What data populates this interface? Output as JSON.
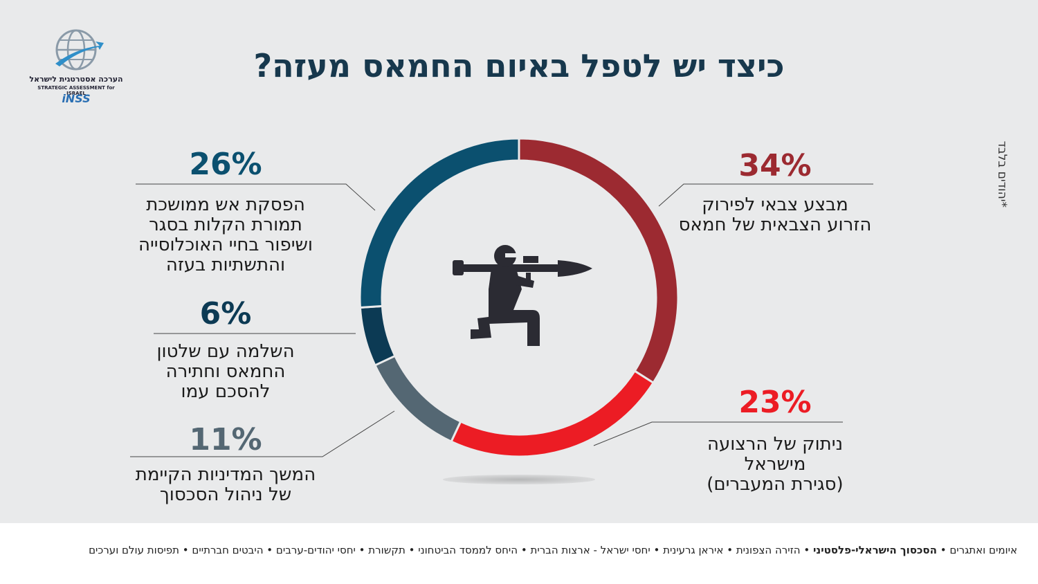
{
  "title": "כיצד יש לטפל באיום החמאס מעזה?",
  "side_note": "*יהודים בלבד",
  "logo": {
    "hebrew": "הערכה אסטרטגית לישראל",
    "english": "STRATEGIC ASSESSMENT for ISRAEL",
    "brand": "iNSS"
  },
  "chart_data": {
    "type": "pie",
    "title": "כיצד יש לטפל באיום החמאס מעזה?",
    "slices": [
      {
        "percent_label": "34%",
        "value": 34,
        "label_lines": [
          "מבצע צבאי לפירוק",
          "הזרוע הצבאית של חמאס"
        ],
        "color": "#9c2a31"
      },
      {
        "percent_label": "23%",
        "value": 23,
        "label_lines": [
          "ניתוק של הרצועה",
          "מישראל",
          "(סגירת המעברים)"
        ],
        "color": "#ec1c24"
      },
      {
        "percent_label": "11%",
        "value": 11,
        "label_lines": [
          "המשך המדיניות הקיימת",
          "של ניהול הסכסוך"
        ],
        "color": "#546773"
      },
      {
        "percent_label": "6%",
        "value": 6,
        "label_lines": [
          "השלמה עם שלטון",
          "החמאס וחתירה",
          "להסכם עמו"
        ],
        "color": "#0c3a54"
      },
      {
        "percent_label": "26%",
        "value": 26,
        "label_lines": [
          "הפסקת אש ממושכת",
          "תמורת הקלות בסגר",
          "ושיפור בחיי האוכלוסייה",
          "והתשתיות בעזה"
        ],
        "color": "#0b506f"
      }
    ],
    "center_icon": "soldier-with-rpg-icon"
  },
  "footer": {
    "items": [
      {
        "text": "איומים ואתגרים",
        "highlight": false
      },
      {
        "text": "הסכסוך הישראלי-פלסטיני",
        "highlight": true
      },
      {
        "text": "הזירה הצפונית",
        "highlight": false
      },
      {
        "text": "איראן גרעינית",
        "highlight": false
      },
      {
        "text": "יחסי ישראל - ארצות הברית",
        "highlight": false
      },
      {
        "text": "היחס לממסד הביטחוני",
        "highlight": false
      },
      {
        "text": "תקשורת",
        "highlight": false
      },
      {
        "text": "יחסי יהודים-ערבים",
        "highlight": false
      },
      {
        "text": "היבטים חברתיים",
        "highlight": false
      },
      {
        "text": "תפיסות עולם וערכים",
        "highlight": false
      }
    ],
    "separator": "•"
  }
}
